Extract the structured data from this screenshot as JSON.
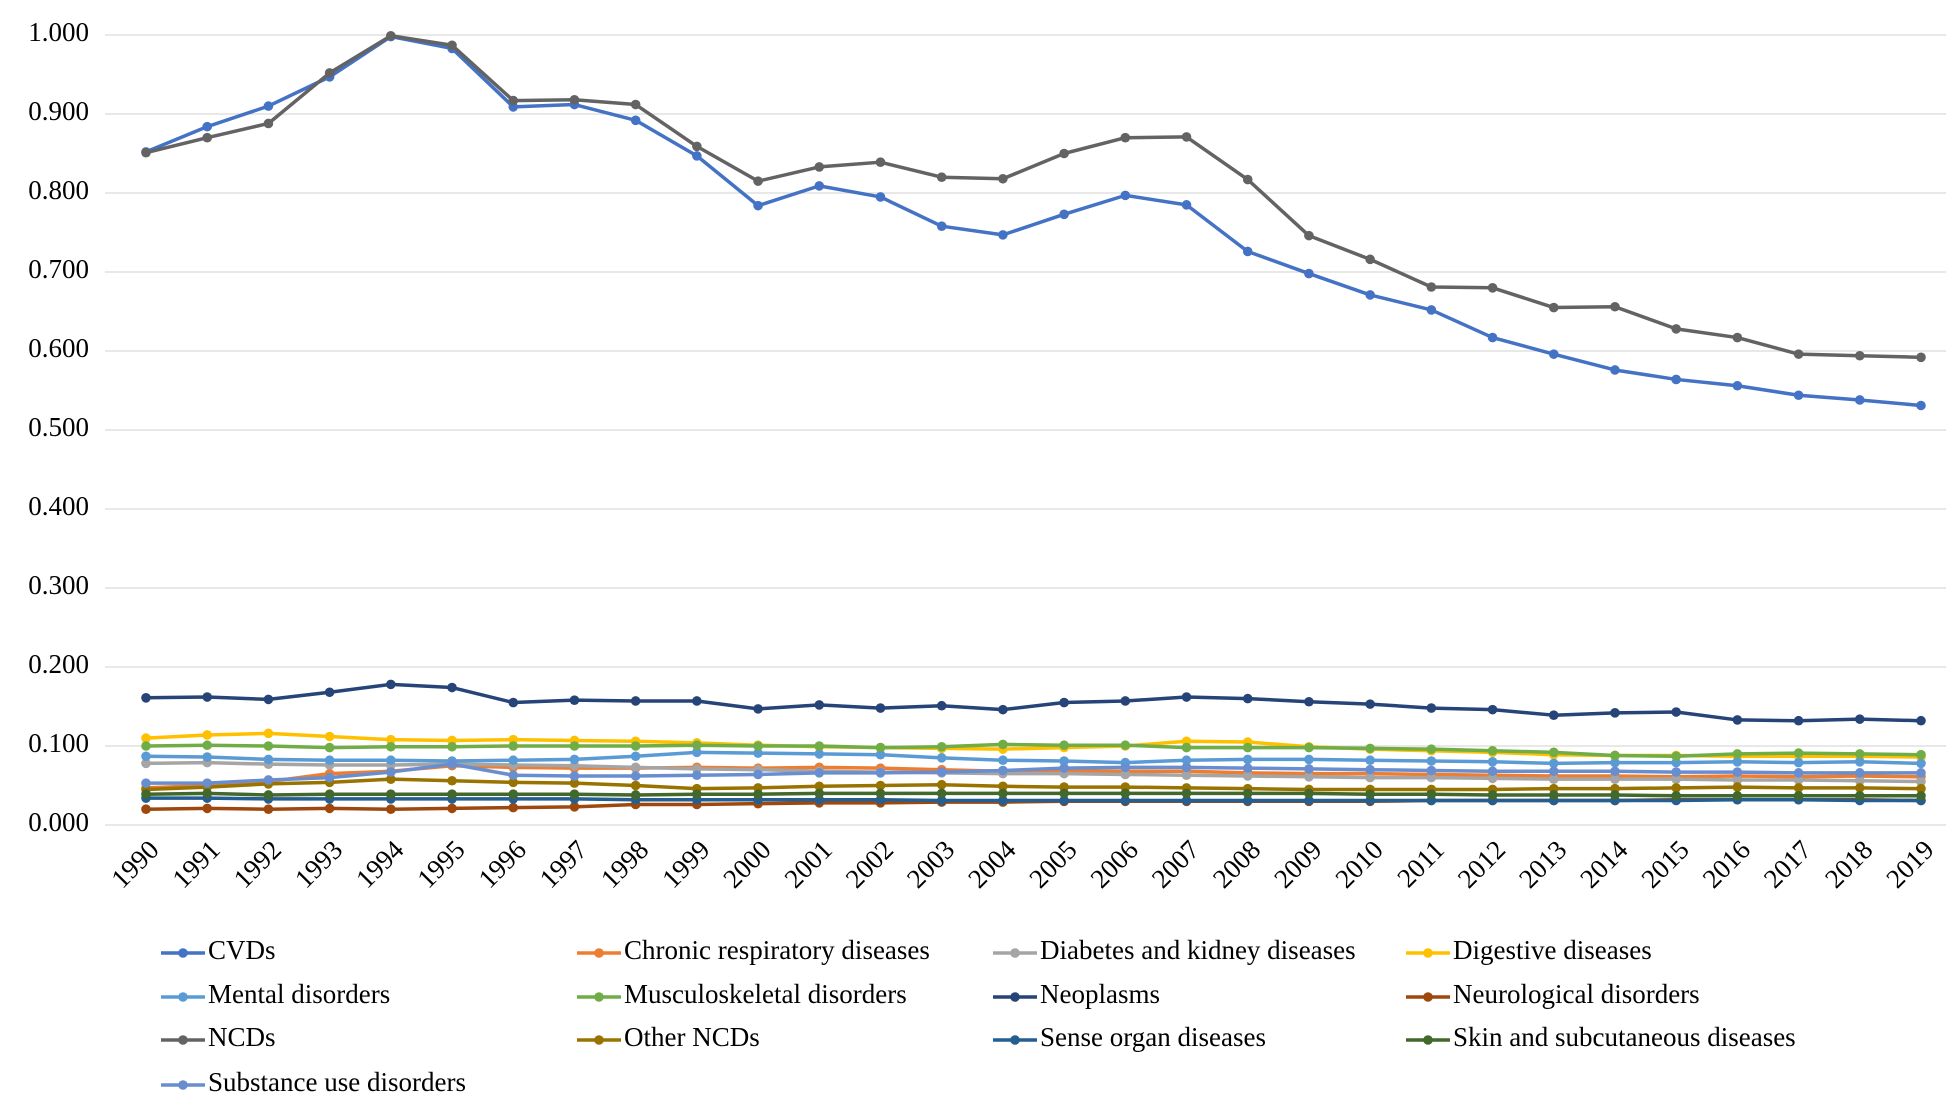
{
  "chart_data": {
    "type": "line",
    "categories": [
      "1990",
      "1991",
      "1992",
      "1993",
      "1994",
      "1995",
      "1996",
      "1997",
      "1998",
      "1999",
      "2000",
      "2001",
      "2002",
      "2003",
      "2004",
      "2005",
      "2006",
      "2007",
      "2008",
      "2009",
      "2010",
      "2011",
      "2012",
      "2013",
      "2014",
      "2015",
      "2016",
      "2017",
      "2018",
      "2019"
    ],
    "ylim": [
      0,
      1
    ],
    "yticks": [
      {
        "value": 0,
        "label": "0.000"
      },
      {
        "value": 0.1,
        "label": "0.100"
      },
      {
        "value": 0.2,
        "label": "0.200"
      },
      {
        "value": 0.3,
        "label": "0.300"
      },
      {
        "value": 0.4,
        "label": "0.400"
      },
      {
        "value": 0.5,
        "label": "0.500"
      },
      {
        "value": 0.6,
        "label": "0.600"
      },
      {
        "value": 0.7,
        "label": "0.700"
      },
      {
        "value": 0.8,
        "label": "0.800"
      },
      {
        "value": 0.9,
        "label": "0.900"
      },
      {
        "value": 1,
        "label": "1.000"
      }
    ],
    "grid": true,
    "legend": "bottom",
    "series": [
      {
        "name": "CVDs",
        "color": "#4472c4",
        "values": [
          0.852,
          0.884,
          0.91,
          0.947,
          0.998,
          0.983,
          0.909,
          0.912,
          0.892,
          0.847,
          0.784,
          0.809,
          0.795,
          0.758,
          0.747,
          0.773,
          0.797,
          0.785,
          0.726,
          0.698,
          0.671,
          0.652,
          0.617,
          0.596,
          0.576,
          0.564,
          0.556,
          0.544,
          0.538,
          0.531
        ]
      },
      {
        "name": "Chronic respiratory diseases",
        "color": "#ed7d31",
        "values": [
          0.047,
          0.05,
          0.055,
          0.065,
          0.068,
          0.075,
          0.073,
          0.072,
          0.072,
          0.073,
          0.072,
          0.073,
          0.072,
          0.07,
          0.068,
          0.068,
          0.068,
          0.068,
          0.066,
          0.065,
          0.065,
          0.064,
          0.063,
          0.062,
          0.062,
          0.061,
          0.062,
          0.061,
          0.062,
          0.061
        ]
      },
      {
        "name": "Diabetes and kidney diseases",
        "color": "#a5a5a5",
        "values": [
          0.078,
          0.079,
          0.077,
          0.076,
          0.076,
          0.077,
          0.076,
          0.075,
          0.073,
          0.071,
          0.07,
          0.068,
          0.067,
          0.066,
          0.065,
          0.065,
          0.064,
          0.063,
          0.062,
          0.061,
          0.06,
          0.06,
          0.059,
          0.058,
          0.058,
          0.058,
          0.057,
          0.057,
          0.056,
          0.055
        ]
      },
      {
        "name": "Digestive diseases",
        "color": "#ffc000",
        "values": [
          0.11,
          0.114,
          0.116,
          0.112,
          0.108,
          0.107,
          0.108,
          0.107,
          0.106,
          0.104,
          0.101,
          0.099,
          0.098,
          0.097,
          0.096,
          0.098,
          0.1,
          0.106,
          0.105,
          0.099,
          0.096,
          0.094,
          0.092,
          0.089,
          0.088,
          0.088,
          0.087,
          0.087,
          0.087,
          0.086
        ]
      },
      {
        "name": "Mental disorders",
        "color": "#5b9bd5",
        "values": [
          0.087,
          0.086,
          0.083,
          0.082,
          0.082,
          0.081,
          0.082,
          0.083,
          0.087,
          0.092,
          0.091,
          0.09,
          0.089,
          0.085,
          0.082,
          0.081,
          0.079,
          0.082,
          0.083,
          0.083,
          0.082,
          0.081,
          0.08,
          0.078,
          0.079,
          0.079,
          0.08,
          0.079,
          0.08,
          0.078
        ]
      },
      {
        "name": "Musculoskeletal disorders",
        "color": "#70ad47",
        "values": [
          0.1,
          0.101,
          0.1,
          0.098,
          0.099,
          0.099,
          0.1,
          0.1,
          0.1,
          0.101,
          0.1,
          0.1,
          0.098,
          0.099,
          0.102,
          0.101,
          0.101,
          0.098,
          0.098,
          0.098,
          0.097,
          0.096,
          0.094,
          0.092,
          0.088,
          0.087,
          0.09,
          0.091,
          0.09,
          0.089
        ]
      },
      {
        "name": "Neoplasms",
        "color": "#264478",
        "values": [
          0.161,
          0.162,
          0.159,
          0.168,
          0.178,
          0.174,
          0.155,
          0.158,
          0.157,
          0.157,
          0.147,
          0.152,
          0.148,
          0.151,
          0.146,
          0.155,
          0.157,
          0.162,
          0.16,
          0.156,
          0.153,
          0.148,
          0.146,
          0.139,
          0.142,
          0.143,
          0.133,
          0.132,
          0.134,
          0.132
        ]
      },
      {
        "name": "Neurological disorders",
        "color": "#9e480e",
        "values": [
          0.02,
          0.021,
          0.02,
          0.021,
          0.02,
          0.021,
          0.022,
          0.023,
          0.026,
          0.026,
          0.027,
          0.028,
          0.028,
          0.029,
          0.029,
          0.03,
          0.03,
          0.03,
          0.03,
          0.03,
          0.03,
          0.031,
          0.031,
          0.031,
          0.031,
          0.032,
          0.032,
          0.032,
          0.032,
          0.031
        ]
      },
      {
        "name": "NCDs",
        "color": "#636363",
        "values": [
          0.851,
          0.87,
          0.888,
          0.952,
          0.999,
          0.987,
          0.917,
          0.918,
          0.912,
          0.859,
          0.815,
          0.833,
          0.839,
          0.82,
          0.818,
          0.85,
          0.87,
          0.871,
          0.817,
          0.746,
          0.716,
          0.681,
          0.68,
          0.655,
          0.656,
          0.628,
          0.617,
          0.596,
          0.594,
          0.592
        ]
      },
      {
        "name": "Other NCDs",
        "color": "#997300",
        "values": [
          0.045,
          0.048,
          0.052,
          0.054,
          0.058,
          0.056,
          0.054,
          0.053,
          0.05,
          0.046,
          0.047,
          0.049,
          0.05,
          0.051,
          0.049,
          0.048,
          0.048,
          0.047,
          0.046,
          0.045,
          0.045,
          0.045,
          0.045,
          0.046,
          0.046,
          0.047,
          0.048,
          0.047,
          0.047,
          0.046
        ]
      },
      {
        "name": "Sense organ diseases",
        "color": "#255e91",
        "values": [
          0.034,
          0.034,
          0.033,
          0.033,
          0.033,
          0.033,
          0.033,
          0.033,
          0.032,
          0.032,
          0.032,
          0.032,
          0.032,
          0.031,
          0.031,
          0.031,
          0.031,
          0.031,
          0.031,
          0.031,
          0.031,
          0.031,
          0.031,
          0.031,
          0.031,
          0.031,
          0.032,
          0.032,
          0.031,
          0.031
        ]
      },
      {
        "name": "Skin and subcutaneous diseases",
        "color": "#43682b",
        "values": [
          0.039,
          0.04,
          0.038,
          0.039,
          0.039,
          0.039,
          0.039,
          0.039,
          0.038,
          0.039,
          0.039,
          0.04,
          0.04,
          0.04,
          0.04,
          0.04,
          0.04,
          0.04,
          0.04,
          0.04,
          0.039,
          0.039,
          0.038,
          0.038,
          0.038,
          0.037,
          0.037,
          0.037,
          0.037,
          0.037
        ]
      },
      {
        "name": "Substance use disorders",
        "color": "#698ed0",
        "values": [
          0.053,
          0.053,
          0.057,
          0.06,
          0.067,
          0.077,
          0.063,
          0.062,
          0.062,
          0.063,
          0.064,
          0.066,
          0.066,
          0.067,
          0.069,
          0.072,
          0.073,
          0.073,
          0.072,
          0.071,
          0.07,
          0.069,
          0.068,
          0.068,
          0.068,
          0.067,
          0.067,
          0.066,
          0.066,
          0.066
        ]
      }
    ]
  }
}
